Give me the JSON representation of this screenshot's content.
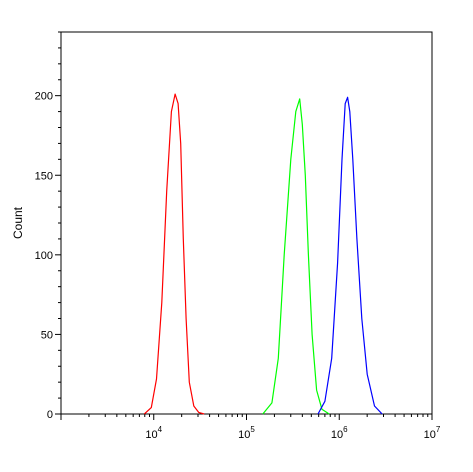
{
  "chart_data": {
    "type": "line",
    "title": "",
    "xlabel": "",
    "ylabel": "Count",
    "x_scale": "log",
    "xlim": [
      1000,
      10000000
    ],
    "ylim": [
      0,
      240
    ],
    "grid": false,
    "legend": "none",
    "x_ticks": [
      {
        "value": 10000,
        "base": "10",
        "exp": "4"
      },
      {
        "value": 100000,
        "base": "10",
        "exp": "5"
      },
      {
        "value": 1000000,
        "base": "10",
        "exp": "6"
      },
      {
        "value": 10000000,
        "base": "10",
        "exp": "7"
      }
    ],
    "y_ticks": [
      {
        "value": 0,
        "label": "0"
      },
      {
        "value": 50,
        "label": "50"
      },
      {
        "value": 100,
        "label": "100"
      },
      {
        "value": 150,
        "label": "150"
      },
      {
        "value": 200,
        "label": "200"
      }
    ],
    "series": [
      {
        "color": "#ff0000",
        "points": [
          [
            7900,
            0
          ],
          [
            9400,
            4
          ],
          [
            10700,
            22
          ],
          [
            12200,
            70
          ],
          [
            13800,
            140
          ],
          [
            15500,
            190
          ],
          [
            17000,
            201
          ],
          [
            18300,
            195
          ],
          [
            19500,
            170
          ],
          [
            20800,
            110
          ],
          [
            22300,
            60
          ],
          [
            24200,
            20
          ],
          [
            27000,
            5
          ],
          [
            30500,
            1
          ],
          [
            35000,
            0
          ]
        ]
      },
      {
        "color": "#00ff00",
        "points": [
          [
            150000,
            0
          ],
          [
            188000,
            7
          ],
          [
            220000,
            35
          ],
          [
            255000,
            100
          ],
          [
            300000,
            160
          ],
          [
            340000,
            190
          ],
          [
            375000,
            198
          ],
          [
            400000,
            182
          ],
          [
            430000,
            150
          ],
          [
            465000,
            100
          ],
          [
            510000,
            50
          ],
          [
            570000,
            15
          ],
          [
            650000,
            3
          ],
          [
            780000,
            0
          ]
        ]
      },
      {
        "color": "#0000ff",
        "points": [
          [
            590000,
            0
          ],
          [
            700000,
            8
          ],
          [
            830000,
            35
          ],
          [
            960000,
            95
          ],
          [
            1070000,
            160
          ],
          [
            1160000,
            195
          ],
          [
            1230000,
            199
          ],
          [
            1300000,
            190
          ],
          [
            1400000,
            160
          ],
          [
            1550000,
            110
          ],
          [
            1750000,
            60
          ],
          [
            2000000,
            25
          ],
          [
            2400000,
            5
          ],
          [
            2900000,
            0
          ]
        ]
      }
    ]
  }
}
